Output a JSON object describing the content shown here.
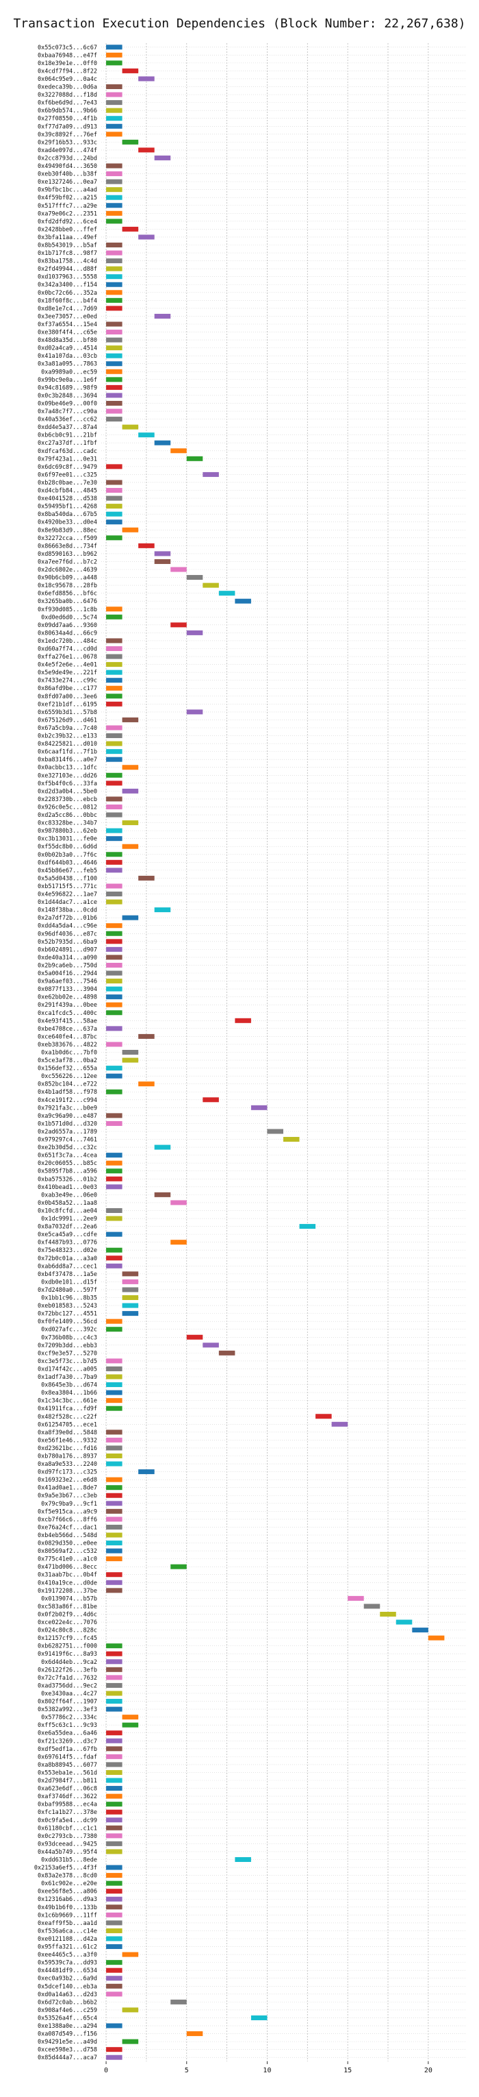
{
  "chart_data": {
    "type": "bar",
    "title": "Transaction Execution Dependencies (Block Number: 22,267,638)",
    "xlabel": "",
    "ylabel": "",
    "xlim": [
      -0.3,
      22.3
    ],
    "xticks": [
      0,
      5,
      10,
      15,
      20
    ],
    "grid": true,
    "bar_width": 1,
    "palette": [
      "#1f77b4",
      "#ff7f0e",
      "#2ca02c",
      "#d62728",
      "#9467bd",
      "#8c564b",
      "#e377c2",
      "#7f7f7f",
      "#bcbd22",
      "#17becf"
    ],
    "transactions": [
      {
        "tx": "0x55c073c5...6c67",
        "start": 0
      },
      {
        "tx": "0xbaa76948...e47f",
        "start": 0
      },
      {
        "tx": "0x18e39e1e...0ff0",
        "start": 0
      },
      {
        "tx": "0x4cdf7f94...8f22",
        "start": 1
      },
      {
        "tx": "0x064c95e9...0a4c",
        "start": 2
      },
      {
        "tx": "0xedeca39b...0d6a",
        "start": 0
      },
      {
        "tx": "0x3227088d...f18d",
        "start": 0
      },
      {
        "tx": "0xf6be6d9d...7e43",
        "start": 0
      },
      {
        "tx": "0x6b9db574...9b66",
        "start": 0
      },
      {
        "tx": "0x27f08550...4f1b",
        "start": 0
      },
      {
        "tx": "0xf77d7a09...d913",
        "start": 0
      },
      {
        "tx": "0x39c8892f...76ef",
        "start": 0
      },
      {
        "tx": "0x29f16b53...933c",
        "start": 1
      },
      {
        "tx": "0xad4e097d...474f",
        "start": 2
      },
      {
        "tx": "0x2cc8793d...24bd",
        "start": 3
      },
      {
        "tx": "0x49490fd4...3650",
        "start": 0
      },
      {
        "tx": "0xeb30f40b...b38f",
        "start": 0
      },
      {
        "tx": "0xe1327246...0ea7",
        "start": 0
      },
      {
        "tx": "0x9bfbc1bc...a4ad",
        "start": 0
      },
      {
        "tx": "0x4f59bf02...a215",
        "start": 0
      },
      {
        "tx": "0x517fffc7...a29e",
        "start": 0
      },
      {
        "tx": "0xa79e06c2...2351",
        "start": 0
      },
      {
        "tx": "0xfd2dfd92...6ce4",
        "start": 0
      },
      {
        "tx": "0x2428bbe0...ffef",
        "start": 1
      },
      {
        "tx": "0x3bfa11aa...49ef",
        "start": 2
      },
      {
        "tx": "0x8b543019...b5af",
        "start": 0
      },
      {
        "tx": "0x1b717fc8...98f7",
        "start": 0
      },
      {
        "tx": "0x83ba1758...4c4d",
        "start": 0
      },
      {
        "tx": "0x2fd49944...d88f",
        "start": 0
      },
      {
        "tx": "0xd1037963...5558",
        "start": 0
      },
      {
        "tx": "0x342a3400...f154",
        "start": 0
      },
      {
        "tx": "0x0bc72c66...352a",
        "start": 0
      },
      {
        "tx": "0x18f60f8c...b4f4",
        "start": 0
      },
      {
        "tx": "0xd8e1e7c4...7d69",
        "start": 0
      },
      {
        "tx": "0x3ee73057...e0ed",
        "start": 3
      },
      {
        "tx": "0xf37a6554...15e4",
        "start": 0
      },
      {
        "tx": "0xe380f4f4...c65e",
        "start": 0
      },
      {
        "tx": "0x48d8a35d...bf80",
        "start": 0
      },
      {
        "tx": "0xd02a4ca9...4514",
        "start": 0
      },
      {
        "tx": "0x41a107da...03cb",
        "start": 0
      },
      {
        "tx": "0x3a81a095...7863",
        "start": 0
      },
      {
        "tx": "0xa9989a0...ec59",
        "start": 0
      },
      {
        "tx": "0x99bc9e0a...1e6f",
        "start": 0
      },
      {
        "tx": "0x94c81689...98f9",
        "start": 0
      },
      {
        "tx": "0x0c3b2848...3694",
        "start": 0
      },
      {
        "tx": "0x09be46e9...00f0",
        "start": 0
      },
      {
        "tx": "0x7a48c7f7...c90a",
        "start": 0
      },
      {
        "tx": "0x40a536ef...cc62",
        "start": 0
      },
      {
        "tx": "0xdd4e5a37...87a4",
        "start": 1
      },
      {
        "tx": "0xb6cb0c91...21bf",
        "start": 2
      },
      {
        "tx": "0xc27a37df...1fbf",
        "start": 3
      },
      {
        "tx": "0xdfcaf63d...cadc",
        "start": 4
      },
      {
        "tx": "0x79f423a1...0e31",
        "start": 5
      },
      {
        "tx": "0x6dc69c8f...9479",
        "start": 0
      },
      {
        "tx": "0x6f97ee01...c325",
        "start": 6
      },
      {
        "tx": "0xb28c0bae...7e30",
        "start": 0
      },
      {
        "tx": "0xd4cbfb84...4845",
        "start": 0
      },
      {
        "tx": "0xe4041528...d538",
        "start": 0
      },
      {
        "tx": "0x59495bf1...4268",
        "start": 0
      },
      {
        "tx": "0x8ba540da...67b5",
        "start": 0
      },
      {
        "tx": "0x4920be33...d0e4",
        "start": 0
      },
      {
        "tx": "0x8e9b83d9...88ec",
        "start": 1
      },
      {
        "tx": "0x32272cca...f509",
        "start": 0
      },
      {
        "tx": "0x86663e8d...734f",
        "start": 2
      },
      {
        "tx": "0xd8590163...b962",
        "start": 3
      },
      {
        "tx": "0xa7ee7f6d...b7c2",
        "start": 3
      },
      {
        "tx": "0x2dc6802e...4639",
        "start": 4
      },
      {
        "tx": "0x90b6cb09...a448",
        "start": 5
      },
      {
        "tx": "0x18c95678...28fb",
        "start": 6
      },
      {
        "tx": "0x6efd8856...bf6c",
        "start": 7
      },
      {
        "tx": "0x3265ba0b...6476",
        "start": 8
      },
      {
        "tx": "0xf930d085...1c8b",
        "start": 0
      },
      {
        "tx": "0xd0ed6d0...5c74",
        "start": 0
      },
      {
        "tx": "0x09dd7aa6...9360",
        "start": 4
      },
      {
        "tx": "0x80634a4d...66c9",
        "start": 5
      },
      {
        "tx": "0x1edc720b...484c",
        "start": 0
      },
      {
        "tx": "0xd60a7f74...cd0d",
        "start": 0
      },
      {
        "tx": "0xffa276e1...0678",
        "start": 0
      },
      {
        "tx": "0x4e5f2e6e...4e01",
        "start": 0
      },
      {
        "tx": "0x5e9de49e...221f",
        "start": 0
      },
      {
        "tx": "0x7433e274...c99c",
        "start": 0
      },
      {
        "tx": "0x86afd9be...c177",
        "start": 0
      },
      {
        "tx": "0x8fd07a00...3ee6",
        "start": 0
      },
      {
        "tx": "0xef21b1df...6195",
        "start": 0
      },
      {
        "tx": "0x6559b3d1...57b8",
        "start": 5
      },
      {
        "tx": "0x675126d9...d461",
        "start": 1
      },
      {
        "tx": "0x67a5cb9a...7c40",
        "start": 0
      },
      {
        "tx": "0xb2c39b32...e133",
        "start": 0
      },
      {
        "tx": "0x84225821...d010",
        "start": 0
      },
      {
        "tx": "0x6caaf1fd...7f1b",
        "start": 0
      },
      {
        "tx": "0xba8314f6...a0e7",
        "start": 0
      },
      {
        "tx": "0x0acbbc13...1dfc",
        "start": 1
      },
      {
        "tx": "0xe327103e...dd26",
        "start": 0
      },
      {
        "tx": "0xf5b4f0c6...33fa",
        "start": 0
      },
      {
        "tx": "0xd2d3a0b4...5be0",
        "start": 1
      },
      {
        "tx": "0x2283730b...ebcb",
        "start": 0
      },
      {
        "tx": "0x926c0e5c...0812",
        "start": 0
      },
      {
        "tx": "0xd2a5cc86...0bbc",
        "start": 0
      },
      {
        "tx": "0xc83328be...34b7",
        "start": 1
      },
      {
        "tx": "0x987880b3...62eb",
        "start": 0
      },
      {
        "tx": "0xc3b13031...fe0e",
        "start": 0
      },
      {
        "tx": "0xf55dc8b0...6d6d",
        "start": 1
      },
      {
        "tx": "0x0b02b3a0...7f6c",
        "start": 0
      },
      {
        "tx": "0xdf644b03...4646",
        "start": 0
      },
      {
        "tx": "0x45b86e67...feb5",
        "start": 0
      },
      {
        "tx": "0x5a5d0438...f100",
        "start": 2
      },
      {
        "tx": "0xb51715f5...771c",
        "start": 0
      },
      {
        "tx": "0x4e596822...1ae7",
        "start": 0
      },
      {
        "tx": "0x1d44dac7...a1ce",
        "start": 0
      },
      {
        "tx": "0x148f38ba...0cdd",
        "start": 3
      },
      {
        "tx": "0x2a7df72b...01b6",
        "start": 1
      },
      {
        "tx": "0xdd4a5da4...c96e",
        "start": 0
      },
      {
        "tx": "0x96df4036...e87c",
        "start": 0
      },
      {
        "tx": "0x52b7935d...6ba9",
        "start": 0
      },
      {
        "tx": "0xb6024891...d907",
        "start": 0
      },
      {
        "tx": "0xde40a314...a090",
        "start": 0
      },
      {
        "tx": "0x2b9ca6eb...750d",
        "start": 0
      },
      {
        "tx": "0x5a004f16...29d4",
        "start": 0
      },
      {
        "tx": "0x9a6aef03...7546",
        "start": 0
      },
      {
        "tx": "0x0877f133...3904",
        "start": 0
      },
      {
        "tx": "0xe62bb02e...4898",
        "start": 0
      },
      {
        "tx": "0x291f439a...0bee",
        "start": 0
      },
      {
        "tx": "0xca1fcdc5...400c",
        "start": 0
      },
      {
        "tx": "0x4e93f415...58ae",
        "start": 8
      },
      {
        "tx": "0xbe4708ce...637a",
        "start": 0
      },
      {
        "tx": "0xce640fe4...87bc",
        "start": 2
      },
      {
        "tx": "0xeb383676...4822",
        "start": 0
      },
      {
        "tx": "0xa1b0d6c...7bf0",
        "start": 1
      },
      {
        "tx": "0x5ce3af78...0ba2",
        "start": 1
      },
      {
        "tx": "0x156def32...655a",
        "start": 0
      },
      {
        "tx": "0xc556226...12ee",
        "start": 0
      },
      {
        "tx": "0x852bc104...e722",
        "start": 2
      },
      {
        "tx": "0x4b1adf58...f978",
        "start": 0
      },
      {
        "tx": "0x4ce191f2...c994",
        "start": 6
      },
      {
        "tx": "0x7921fa3c...b0e9",
        "start": 9
      },
      {
        "tx": "0xa9c96a90...e487",
        "start": 0
      },
      {
        "tx": "0x1b571d0d...d320",
        "start": 0
      },
      {
        "tx": "0x2ad6557a...1789",
        "start": 10
      },
      {
        "tx": "0x979297c4...7461",
        "start": 11
      },
      {
        "tx": "0xe2b30d5d...c32c",
        "start": 3
      },
      {
        "tx": "0x651f3c7a...4cea",
        "start": 0
      },
      {
        "tx": "0x20c06055...b85c",
        "start": 0
      },
      {
        "tx": "0x5895f7b8...a596",
        "start": 0
      },
      {
        "tx": "0xba575326...01b2",
        "start": 0
      },
      {
        "tx": "0x410bead1...0e03",
        "start": 0
      },
      {
        "tx": "0xab3e49e...06e0",
        "start": 3
      },
      {
        "tx": "0x0b458a52...1aa8",
        "start": 4
      },
      {
        "tx": "0x10c8fcfd...ae04",
        "start": 0
      },
      {
        "tx": "0x1dc9991...2ee9",
        "start": 0
      },
      {
        "tx": "0x8a7032df...2ea6",
        "start": 12
      },
      {
        "tx": "0xe5ca45a9...cdfe",
        "start": 0
      },
      {
        "tx": "0xf4487b93...0776",
        "start": 4
      },
      {
        "tx": "0x75e48323...d02e",
        "start": 0
      },
      {
        "tx": "0x72b0c01a...a3a0",
        "start": 0
      },
      {
        "tx": "0xab6dd8a7...cec1",
        "start": 0
      },
      {
        "tx": "0xb4f37478...1a5e",
        "start": 1
      },
      {
        "tx": "0xdb0e101...d15f",
        "start": 1
      },
      {
        "tx": "0x7d2480a0...597f",
        "start": 1
      },
      {
        "tx": "0x1bb1c96...8b35",
        "start": 1
      },
      {
        "tx": "0xeb018583...5243",
        "start": 1
      },
      {
        "tx": "0x72bbc127...4551",
        "start": 1
      },
      {
        "tx": "0xf0fe1409...56cd",
        "start": 0
      },
      {
        "tx": "0xd027afc...392c",
        "start": 0
      },
      {
        "tx": "0x736b08b...c4c3",
        "start": 5
      },
      {
        "tx": "0x7209b3dd...ebb3",
        "start": 6
      },
      {
        "tx": "0xcf9e3e57...5270",
        "start": 7
      },
      {
        "tx": "0xc3e5f73c...b7d5",
        "start": 0
      },
      {
        "tx": "0xd174f42c...a005",
        "start": 0
      },
      {
        "tx": "0x1adf7a30...7ba9",
        "start": 0
      },
      {
        "tx": "0x8645e3b...d674",
        "start": 0
      },
      {
        "tx": "0x8ea3804...1b66",
        "start": 0
      },
      {
        "tx": "0x1c34c3bc...661e",
        "start": 0
      },
      {
        "tx": "0x41911fca...fd9f",
        "start": 0
      },
      {
        "tx": "0x482f528c...c22f",
        "start": 13
      },
      {
        "tx": "0x61254705...ece1",
        "start": 14
      },
      {
        "tx": "0xa8f39e0d...5848",
        "start": 0
      },
      {
        "tx": "0xe56f1e46...9332",
        "start": 0
      },
      {
        "tx": "0xd23621bc...fd16",
        "start": 0
      },
      {
        "tx": "0xb780a176...8937",
        "start": 0
      },
      {
        "tx": "0xa8a9e533...2240",
        "start": 0
      },
      {
        "tx": "0xd97fc173...c325",
        "start": 2
      },
      {
        "tx": "0x169323e2...e6d8",
        "start": 0
      },
      {
        "tx": "0x41ad0ae1...8de7",
        "start": 0
      },
      {
        "tx": "0x9a5e3b67...c3eb",
        "start": 0
      },
      {
        "tx": "0x79c9ba9...9cf1",
        "start": 0
      },
      {
        "tx": "0xf5e915ca...a9c9",
        "start": 0
      },
      {
        "tx": "0xcb7f66c6...8ff6",
        "start": 0
      },
      {
        "tx": "0xe76a24cf...dac1",
        "start": 0
      },
      {
        "tx": "0xb4eb566d...548d",
        "start": 0
      },
      {
        "tx": "0x0829d350...e0ee",
        "start": 0
      },
      {
        "tx": "0x80569af2...c532",
        "start": 0
      },
      {
        "tx": "0x775c41e0...a1c0",
        "start": 0
      },
      {
        "tx": "0x471bd006...8ecc",
        "start": 4
      },
      {
        "tx": "0x31aab7bc...0b4f",
        "start": 0
      },
      {
        "tx": "0x410a19ce...d0de",
        "start": 0
      },
      {
        "tx": "0x19172208...37be",
        "start": 0
      },
      {
        "tx": "0x0139074...b57b",
        "start": 15
      },
      {
        "tx": "0xc583a86f...81be",
        "start": 16
      },
      {
        "tx": "0x0f2b02f9...4d6c",
        "start": 17
      },
      {
        "tx": "0xce022e4c...7076",
        "start": 18
      },
      {
        "tx": "0x024c80c8...828c",
        "start": 19
      },
      {
        "tx": "0x12157cf9...fc45",
        "start": 20
      },
      {
        "tx": "0xb6282751...f000",
        "start": 0
      },
      {
        "tx": "0x91419f6c...8a93",
        "start": 0
      },
      {
        "tx": "0x6d4d4eb...9ca2",
        "start": 0
      },
      {
        "tx": "0x26122f26...3efb",
        "start": 0
      },
      {
        "tx": "0x72c7fa1d...7632",
        "start": 0
      },
      {
        "tx": "0xad3756dd...9ec2",
        "start": 0
      },
      {
        "tx": "0xe3430aa...4c27",
        "start": 0
      },
      {
        "tx": "0x802ff64f...1907",
        "start": 0
      },
      {
        "tx": "0x5382a992...3ef3",
        "start": 0
      },
      {
        "tx": "0x57786c2...334c",
        "start": 1
      },
      {
        "tx": "0xff5c63c1...9c93",
        "start": 1
      },
      {
        "tx": "0xe6a55dea...6a46",
        "start": 0
      },
      {
        "tx": "0xf21c3269...d3c7",
        "start": 0
      },
      {
        "tx": "0xdf5edf1a...67fb",
        "start": 0
      },
      {
        "tx": "0x697614f5...fdaf",
        "start": 0
      },
      {
        "tx": "0xa8b88945...6077",
        "start": 0
      },
      {
        "tx": "0x553eba1e...561d",
        "start": 0
      },
      {
        "tx": "0x2d7984f7...b811",
        "start": 0
      },
      {
        "tx": "0xa623e6df...06c8",
        "start": 0
      },
      {
        "tx": "0xaf3746df...3622",
        "start": 0
      },
      {
        "tx": "0xbaf99588...ec4a",
        "start": 0
      },
      {
        "tx": "0xfc1a1b27...378e",
        "start": 0
      },
      {
        "tx": "0x0c9fa5e4...dc99",
        "start": 0
      },
      {
        "tx": "0x61180cbf...c1c1",
        "start": 0
      },
      {
        "tx": "0x0c2793cb...7380",
        "start": 0
      },
      {
        "tx": "0x93dceead...9425",
        "start": 0
      },
      {
        "tx": "0x44a5b749...95f4",
        "start": 0
      },
      {
        "tx": "0xdd631b5...8ede",
        "start": 8
      },
      {
        "tx": "0x2153a6ef5...4f3f",
        "start": 0
      },
      {
        "tx": "0x83a2e378...8cd0",
        "start": 0
      },
      {
        "tx": "0x61c902e...e20e",
        "start": 0
      },
      {
        "tx": "0xee56f8e5...a806",
        "start": 0
      },
      {
        "tx": "0x12316ab6...d9a3",
        "start": 0
      },
      {
        "tx": "0x49b1b6f0...133b",
        "start": 0
      },
      {
        "tx": "0x1c6b9669...11ff",
        "start": 0
      },
      {
        "tx": "0xeaff9f5b...aa1d",
        "start": 0
      },
      {
        "tx": "0xf536a6ca...c14e",
        "start": 0
      },
      {
        "tx": "0xe0121108...d42a",
        "start": 0
      },
      {
        "tx": "0x95ffa321...61c2",
        "start": 0
      },
      {
        "tx": "0xee4465c5...a3f0",
        "start": 1
      },
      {
        "tx": "0x59539c7a...dd93",
        "start": 0
      },
      {
        "tx": "0x44481df9...6534",
        "start": 0
      },
      {
        "tx": "0xec0a93b2...6a9d",
        "start": 0
      },
      {
        "tx": "0x5dcef140...eb3a",
        "start": 0
      },
      {
        "tx": "0xd0a14a63...d2d3",
        "start": 0
      },
      {
        "tx": "0x6d72c0ab...b6b2",
        "start": 4
      },
      {
        "tx": "0x908af4e6...c259",
        "start": 1
      },
      {
        "tx": "0x53526a4f...65c4",
        "start": 9
      },
      {
        "tx": "0xe1388a0e...a294",
        "start": 0
      },
      {
        "tx": "0xa087d549...f156",
        "start": 5
      },
      {
        "tx": "0x94291e5e...a49d",
        "start": 1
      },
      {
        "tx": "0xcee598e3...d758",
        "start": 0
      },
      {
        "tx": "0x85d444a7...aca7",
        "start": 0
      }
    ]
  }
}
